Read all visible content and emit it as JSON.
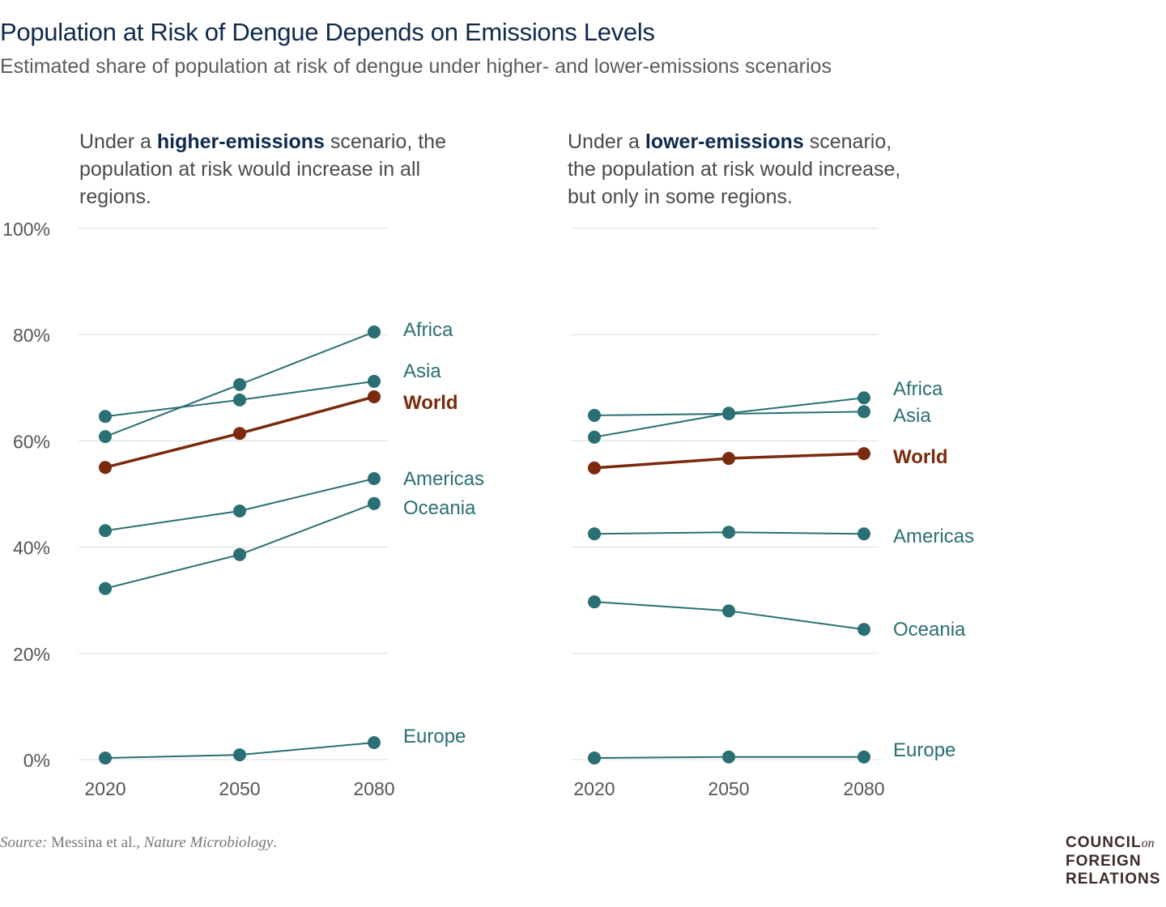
{
  "title": "Population at Risk of Dengue Depends on Emissions Levels",
  "subtitle": "Estimated share of population at risk of dengue under higher- and lower-emissions scenarios",
  "source": {
    "label": "Source:",
    "text": " Messina et al., ",
    "journal": "Nature Microbiology",
    "end": "."
  },
  "logo": {
    "line1": "COUNCIL",
    "on": "on",
    "line2": "FOREIGN",
    "line3": "RELATIONS"
  },
  "colors": {
    "region": "#2a6f73",
    "world": "#7a2a0d",
    "grid": "#dddddd",
    "tick": "#555555"
  },
  "chart_data": [
    {
      "type": "line",
      "header": {
        "pre": "Under a ",
        "bold": "higher-emissions",
        "post": " scenario, the population at risk would increase in all regions."
      },
      "categories": [
        "2020",
        "2050",
        "2080"
      ],
      "ylim": [
        0,
        100
      ],
      "yticks": [
        "0%",
        "20%",
        "40%",
        "60%",
        "80%",
        "100%"
      ],
      "grid": true,
      "series": [
        {
          "name": "Africa",
          "values": [
            60.8,
            70.6,
            80.5
          ]
        },
        {
          "name": "Asia",
          "values": [
            64.6,
            67.7,
            71.2
          ]
        },
        {
          "name": "World",
          "values": [
            55.0,
            61.4,
            68.3
          ],
          "highlight": true
        },
        {
          "name": "Americas",
          "values": [
            43.1,
            46.8,
            52.9
          ]
        },
        {
          "name": "Oceania",
          "values": [
            32.2,
            38.6,
            48.2
          ]
        },
        {
          "name": "Europe",
          "values": [
            0.3,
            0.9,
            3.2
          ]
        }
      ]
    },
    {
      "type": "line",
      "header": {
        "pre": "Under a ",
        "bold": "lower-emissions",
        "post": " scenario, the population at risk would increase, but only in some regions."
      },
      "categories": [
        "2020",
        "2050",
        "2080"
      ],
      "ylim": [
        0,
        100
      ],
      "grid": true,
      "series": [
        {
          "name": "Africa",
          "values": [
            60.7,
            65.2,
            68.1
          ]
        },
        {
          "name": "Asia",
          "values": [
            64.8,
            65.1,
            65.5
          ]
        },
        {
          "name": "World",
          "values": [
            54.9,
            56.7,
            57.6
          ],
          "highlight": true
        },
        {
          "name": "Americas",
          "values": [
            42.5,
            42.8,
            42.5
          ]
        },
        {
          "name": "Oceania",
          "values": [
            29.7,
            28.0,
            24.5
          ]
        },
        {
          "name": "Europe",
          "values": [
            0.3,
            0.5,
            0.5
          ]
        }
      ]
    }
  ]
}
